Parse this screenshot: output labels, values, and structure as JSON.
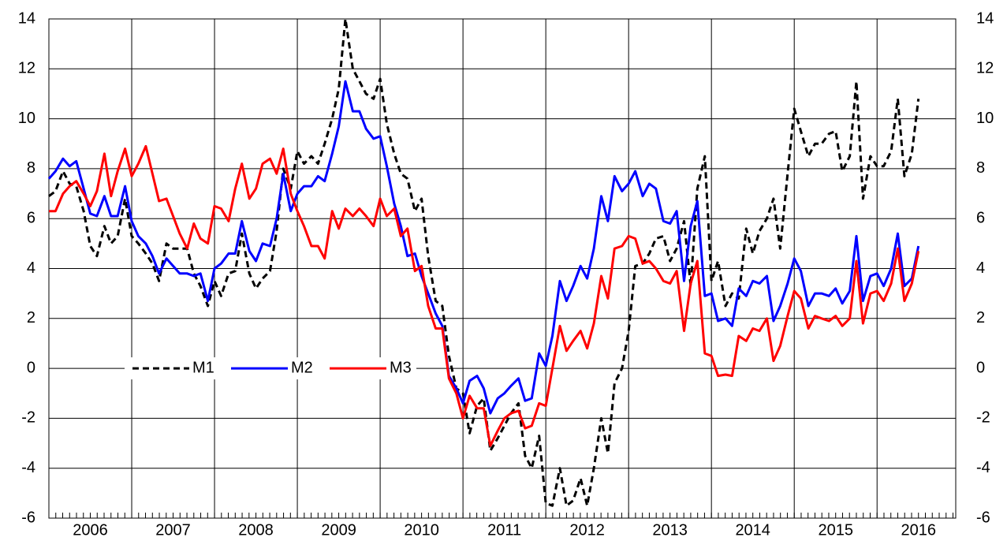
{
  "chart_data": {
    "type": "line",
    "x": [
      2006,
      2006.08,
      2006.17,
      2006.25,
      2006.33,
      2006.42,
      2006.5,
      2006.58,
      2006.67,
      2006.75,
      2006.83,
      2006.92,
      2007,
      2007.08,
      2007.17,
      2007.25,
      2007.33,
      2007.42,
      2007.5,
      2007.58,
      2007.67,
      2007.75,
      2007.83,
      2007.92,
      2008,
      2008.08,
      2008.17,
      2008.25,
      2008.33,
      2008.42,
      2008.5,
      2008.58,
      2008.67,
      2008.75,
      2008.83,
      2008.92,
      2009,
      2009.08,
      2009.17,
      2009.25,
      2009.33,
      2009.42,
      2009.5,
      2009.58,
      2009.67,
      2009.75,
      2009.83,
      2009.92,
      2010,
      2010.08,
      2010.17,
      2010.25,
      2010.33,
      2010.42,
      2010.5,
      2010.58,
      2010.67,
      2010.75,
      2010.83,
      2010.92,
      2011,
      2011.08,
      2011.17,
      2011.25,
      2011.33,
      2011.42,
      2011.5,
      2011.58,
      2011.67,
      2011.75,
      2011.83,
      2011.92,
      2012,
      2012.08,
      2012.17,
      2012.25,
      2012.33,
      2012.42,
      2012.5,
      2012.58,
      2012.67,
      2012.75,
      2012.83,
      2012.92,
      2013,
      2013.08,
      2013.17,
      2013.25,
      2013.33,
      2013.42,
      2013.5,
      2013.58,
      2013.67,
      2013.75,
      2013.83,
      2013.92,
      2014,
      2014.08,
      2014.17,
      2014.25,
      2014.33,
      2014.42,
      2014.5,
      2014.58,
      2014.67,
      2014.75,
      2014.83,
      2014.92,
      2015,
      2015.08,
      2015.17,
      2015.25,
      2015.33,
      2015.42,
      2015.5,
      2015.58,
      2015.67,
      2015.75,
      2015.83,
      2015.92,
      2016,
      2016.08,
      2016.17,
      2016.25,
      2016.33,
      2016.42,
      2016.5
    ],
    "series": [
      {
        "name": "M1",
        "color": "#000000",
        "dash": true,
        "values": [
          6.9,
          7.1,
          7.9,
          7.4,
          7.3,
          6.3,
          4.9,
          4.5,
          5.7,
          5.0,
          5.3,
          6.8,
          5.3,
          5.0,
          4.6,
          4.2,
          3.5,
          5.0,
          4.8,
          4.8,
          4.8,
          3.8,
          3.3,
          2.5,
          3.5,
          2.9,
          3.8,
          3.9,
          5.4,
          3.8,
          3.2,
          3.6,
          3.9,
          5.5,
          8.0,
          7.2,
          8.7,
          8.2,
          8.5,
          8.2,
          9.0,
          10.0,
          11.2,
          14.0,
          12.0,
          11.5,
          11.0,
          10.8,
          11.6,
          9.8,
          8.6,
          7.8,
          7.6,
          6.3,
          6.8,
          4.5,
          2.7,
          2.5,
          0.5,
          -0.8,
          -1.0,
          -2.6,
          -1.5,
          -1.2,
          -3.3,
          -2.8,
          -2.3,
          -1.8,
          -1.4,
          -3.5,
          -4.0,
          -2.7,
          -5.4,
          -5.5,
          -4.0,
          -5.5,
          -5.3,
          -4.4,
          -5.5,
          -4.0,
          -2.0,
          -3.4,
          -0.6,
          0.0,
          1.5,
          4.1,
          4.2,
          4.6,
          5.2,
          5.3,
          4.3,
          4.8,
          5.9,
          3.3,
          7.2,
          8.5,
          3.5,
          4.3,
          2.5,
          3.0,
          2.8,
          5.6,
          4.6,
          5.5,
          6.0,
          6.8,
          4.8,
          7.8,
          10.4,
          9.5,
          8.5,
          9.0,
          9.0,
          9.4,
          9.5,
          7.9,
          8.5,
          11.5,
          6.8,
          8.5,
          8.1,
          8.1,
          8.7,
          10.8,
          7.7,
          8.6,
          10.8
        ]
      },
      {
        "name": "M2",
        "color": "#0000ff",
        "dash": false,
        "values": [
          7.6,
          7.9,
          8.4,
          8.1,
          8.3,
          7.2,
          6.2,
          6.1,
          6.9,
          6.1,
          6.1,
          7.3,
          5.9,
          5.3,
          5.0,
          4.5,
          3.8,
          4.4,
          4.1,
          3.8,
          3.8,
          3.7,
          3.8,
          2.7,
          4.0,
          4.2,
          4.6,
          4.6,
          5.9,
          4.7,
          4.3,
          5.0,
          4.9,
          6.0,
          7.8,
          6.3,
          7.0,
          7.3,
          7.3,
          7.7,
          7.5,
          8.6,
          9.7,
          11.5,
          10.3,
          10.3,
          9.6,
          9.2,
          9.3,
          8.1,
          6.6,
          5.7,
          4.5,
          4.6,
          3.7,
          3.0,
          2.2,
          1.7,
          -0.3,
          -0.8,
          -1.4,
          -0.5,
          -0.3,
          -0.8,
          -1.8,
          -1.2,
          -1.0,
          -0.7,
          -0.4,
          -1.3,
          -1.2,
          0.6,
          0.1,
          1.3,
          3.5,
          2.7,
          3.3,
          4.1,
          3.6,
          4.8,
          6.9,
          5.9,
          7.7,
          7.1,
          7.4,
          7.9,
          6.9,
          7.4,
          7.2,
          5.9,
          5.8,
          6.3,
          3.5,
          5.7,
          6.7,
          2.9,
          3.0,
          1.9,
          2.0,
          1.7,
          3.2,
          2.9,
          3.5,
          3.4,
          3.7,
          1.9,
          2.5,
          3.4,
          4.4,
          3.9,
          2.5,
          3.0,
          3.0,
          2.9,
          3.2,
          2.6,
          3.1,
          5.3,
          2.7,
          3.7,
          3.8,
          3.3,
          4.0,
          5.4,
          3.3,
          3.6,
          4.9
        ]
      },
      {
        "name": "M3",
        "color": "#ff0000",
        "dash": false,
        "values": [
          6.3,
          6.3,
          7.0,
          7.3,
          7.5,
          7.0,
          6.5,
          7.1,
          8.6,
          6.9,
          7.9,
          8.8,
          7.7,
          8.2,
          8.9,
          7.8,
          6.7,
          6.8,
          6.1,
          5.4,
          4.8,
          5.8,
          5.2,
          5.0,
          6.5,
          6.4,
          5.9,
          7.2,
          8.2,
          6.8,
          7.2,
          8.2,
          8.4,
          7.8,
          8.8,
          7.0,
          6.3,
          5.7,
          4.9,
          4.9,
          4.4,
          6.3,
          5.6,
          6.4,
          6.1,
          6.4,
          6.1,
          5.7,
          6.8,
          6.1,
          6.4,
          5.3,
          5.6,
          3.9,
          4.1,
          2.5,
          1.6,
          1.6,
          -0.4,
          -1.0,
          -2.0,
          -1.1,
          -1.6,
          -1.6,
          -3.1,
          -2.5,
          -2.0,
          -1.8,
          -1.7,
          -2.4,
          -2.3,
          -1.4,
          -1.5,
          0.0,
          1.7,
          0.7,
          1.1,
          1.5,
          0.8,
          1.8,
          3.7,
          2.8,
          4.8,
          4.9,
          5.3,
          5.2,
          4.2,
          4.3,
          4.0,
          3.5,
          3.4,
          3.9,
          1.5,
          3.4,
          4.3,
          0.6,
          0.5,
          -0.3,
          -0.25,
          -0.3,
          1.3,
          1.1,
          1.6,
          1.5,
          2.0,
          0.3,
          0.9,
          2.1,
          3.1,
          2.8,
          1.6,
          2.1,
          2.0,
          1.9,
          2.1,
          1.7,
          2.0,
          4.3,
          1.8,
          3.0,
          3.1,
          2.7,
          3.4,
          4.8,
          2.7,
          3.4,
          4.7
        ]
      }
    ],
    "xlim": [
      2006,
      2016.95
    ],
    "xticks": [
      {
        "value": 2006.5,
        "label": "2006"
      },
      {
        "value": 2007.5,
        "label": "2007"
      },
      {
        "value": 2008.5,
        "label": "2008"
      },
      {
        "value": 2009.5,
        "label": "2009"
      },
      {
        "value": 2010.5,
        "label": "2010"
      },
      {
        "value": 2011.5,
        "label": "2011"
      },
      {
        "value": 2012.5,
        "label": "2012"
      },
      {
        "value": 2013.5,
        "label": "2013"
      },
      {
        "value": 2014.5,
        "label": "2014"
      },
      {
        "value": 2015.5,
        "label": "2015"
      },
      {
        "value": 2016.5,
        "label": "2016"
      }
    ],
    "ylim": [
      -6,
      14
    ],
    "yticks": [
      -6,
      -4,
      -2,
      0,
      2,
      4,
      6,
      8,
      10,
      12,
      14
    ],
    "grid": true,
    "legend": "left"
  }
}
